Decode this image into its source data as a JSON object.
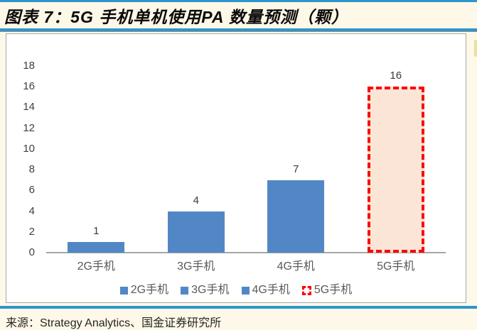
{
  "header": {
    "title": "图表 7：5G 手机单机使用PA 数量预测（颗）"
  },
  "footer": {
    "source": "来源：Strategy Analytics、国金证券研究所"
  },
  "colors": {
    "page_bg": "#FDF8E7",
    "accent_line": "#2E95CD",
    "bar_blue": "#5287C5",
    "bar_5g_fill": "#FBE5D6",
    "bar_5g_border": "#FE0000",
    "axis_line": "#A6A6A6",
    "tick_text": "#404040",
    "category_text": "#595959",
    "value_label_text": "#3A3A3A"
  },
  "chart_data": {
    "type": "bar",
    "title": "5G 手机单机使用PA 数量预测（颗）",
    "categories": [
      "2G手机",
      "3G手机",
      "4G手机",
      "5G手机"
    ],
    "values": [
      1,
      4,
      7,
      16
    ],
    "data_labels": [
      "1",
      "4",
      "7",
      "16"
    ],
    "xlabel": "",
    "ylabel": "",
    "ylim": [
      0,
      18
    ],
    "yticks": [
      0,
      2,
      4,
      6,
      8,
      10,
      12,
      14,
      16,
      18
    ],
    "grid": false,
    "legend_position": "bottom",
    "legend": [
      {
        "label": "2G手机",
        "style": "solid-blue"
      },
      {
        "label": "3G手机",
        "style": "solid-blue"
      },
      {
        "label": "4G手机",
        "style": "solid-blue"
      },
      {
        "label": "5G手机",
        "style": "dashed-red"
      }
    ]
  }
}
